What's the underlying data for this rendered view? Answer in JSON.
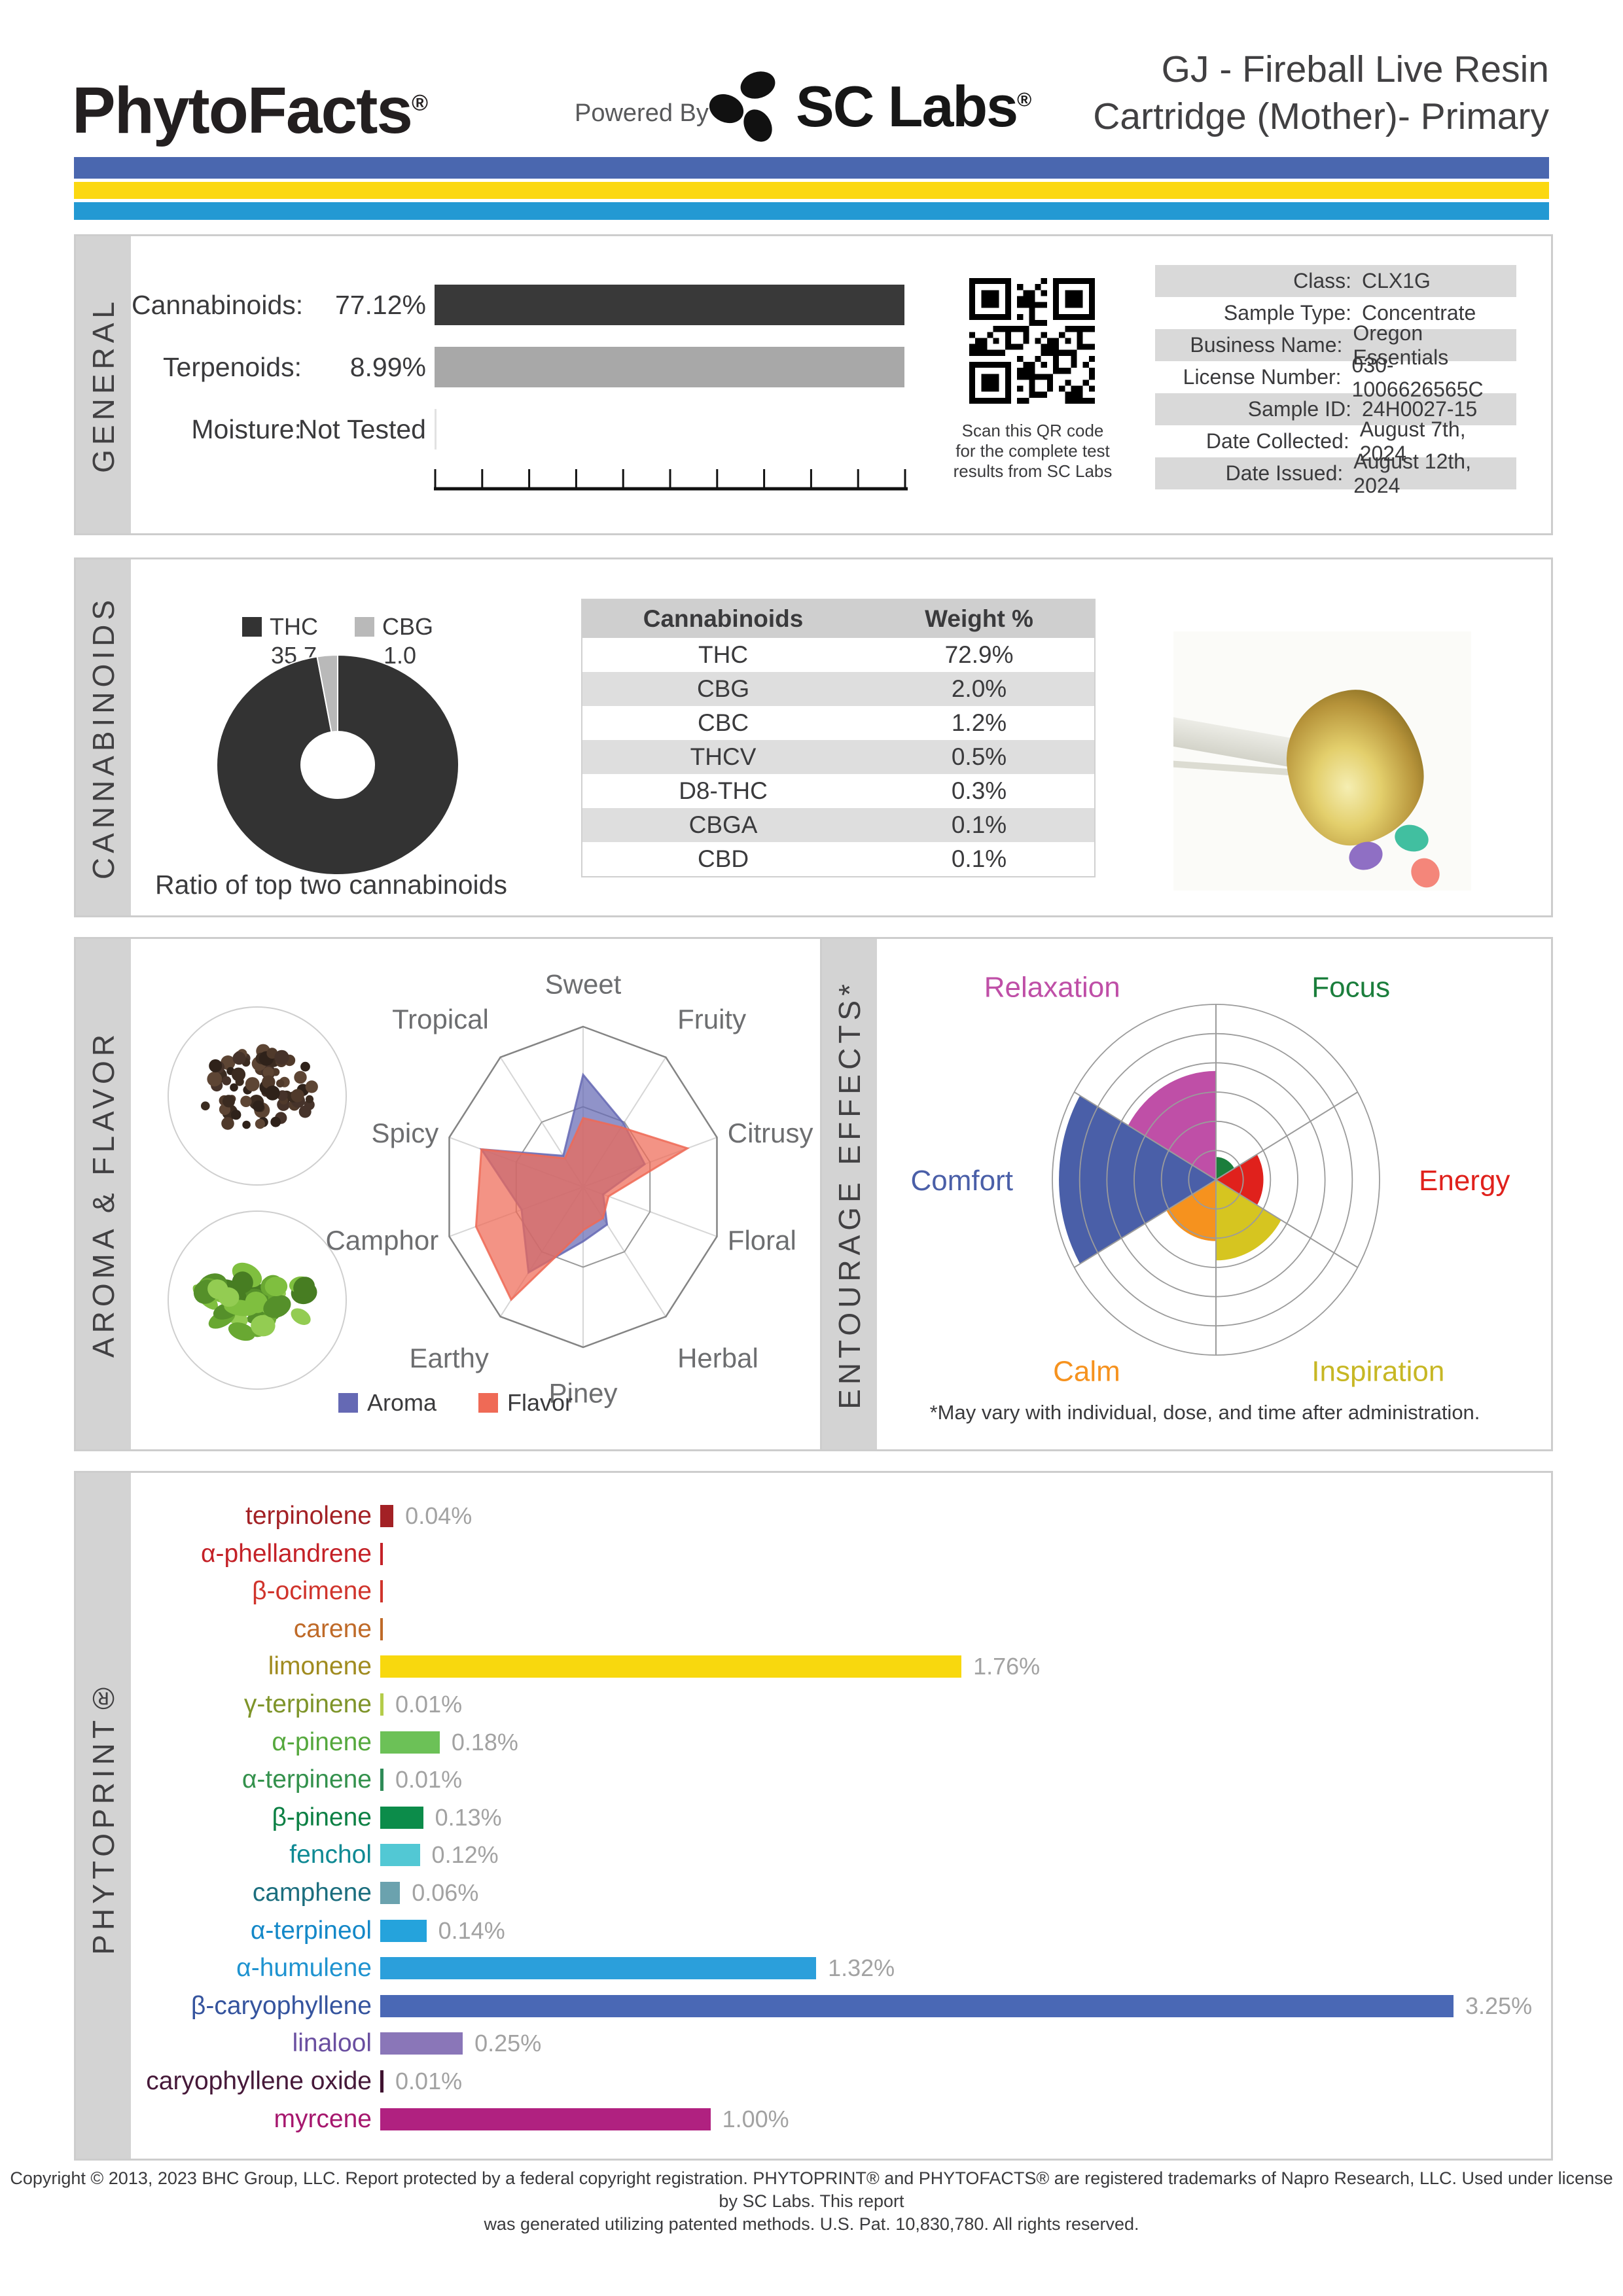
{
  "header": {
    "brand": "PhytoFacts",
    "brand_reg": "®",
    "powered_by": "Powered By",
    "lab_name": "SC Labs",
    "lab_reg": "®",
    "title_line1": "GJ - Fireball Live Resin",
    "title_line2": "Cartridge (Mother)- Primary",
    "stripe_colors": {
      "blue": "#4a67af",
      "yellow": "#fbd811",
      "cyan": "#2399d3"
    }
  },
  "general": {
    "section_label": "GENERAL",
    "rows": [
      {
        "label": "Cannabinoids:",
        "value": "77.12%",
        "bar": true,
        "bar_color": "#393939"
      },
      {
        "label": "Terpenoids:",
        "value": "8.99%",
        "bar": true,
        "bar_color": "#a8a8a8"
      },
      {
        "label": "Moisture:",
        "value": "Not Tested",
        "bar": false,
        "bar_color": ""
      }
    ],
    "qr_caption_lines": [
      "Scan this QR code",
      "for the complete test",
      "results from SC Labs"
    ],
    "info_table": [
      {
        "label": "Class:",
        "value": "CLX1G"
      },
      {
        "label": "Sample Type:",
        "value": "Concentrate"
      },
      {
        "label": "Business Name:",
        "value": "Oregon Essentials"
      },
      {
        "label": "License Number:",
        "value": "030-1006626565C"
      },
      {
        "label": "Sample ID:",
        "value": "24H0027-15"
      },
      {
        "label": "Date Collected:",
        "value": "August 7th, 2024"
      },
      {
        "label": "Date Issued:",
        "value": "August 12th, 2024"
      }
    ]
  },
  "cannabinoids": {
    "section_label": "CANNABINOIDS",
    "caption": "Ratio of top two cannabinoids",
    "chart_data": {
      "type": "pie",
      "labels": [
        "THC",
        "CBG"
      ],
      "values": [
        35.7,
        1.0
      ],
      "colors": [
        "#333333",
        "#b9b9b9"
      ],
      "title": "Ratio of top two cannabinoids"
    },
    "table": {
      "headers": [
        "Cannabinoids",
        "Weight %"
      ],
      "rows": [
        [
          "THC",
          "72.9%"
        ],
        [
          "CBG",
          "2.0%"
        ],
        [
          "CBC",
          "1.2%"
        ],
        [
          "THCV",
          "0.5%"
        ],
        [
          "D8-THC",
          "0.3%"
        ],
        [
          "CBGA",
          "0.1%"
        ],
        [
          "CBD",
          "0.1%"
        ]
      ]
    }
  },
  "aroma_flavor": {
    "section_label": "AROMA & FLAVOR",
    "chart_data": {
      "type": "radar",
      "axes": [
        "Sweet",
        "Fruity",
        "Citrusy",
        "Floral",
        "Herbal",
        "Piney",
        "Earthy",
        "Camphor",
        "Spicy",
        "Tropical"
      ],
      "scale_max": 10,
      "grid_rings": [
        0.5,
        1.0
      ],
      "series": [
        {
          "name": "Aroma",
          "color": "#6569b4",
          "values": [
            7.0,
            4.9,
            4.6,
            1.5,
            2.9,
            3.4,
            6.6,
            4.6,
            7.6,
            2.4
          ]
        },
        {
          "name": "Flavor",
          "color": "#ef6a56",
          "values": [
            4.3,
            4.6,
            7.8,
            1.9,
            2.4,
            2.7,
            8.7,
            8.0,
            7.6,
            2.2
          ]
        }
      ],
      "legend_position": "bottom"
    }
  },
  "entourage": {
    "section_label": "ENTOURAGE EFFECTS*",
    "note": "*May vary with individual, dose, and time after administration.",
    "chart_data": {
      "type": "polar-sector",
      "rings": 6,
      "scale_max": 1,
      "sectors": [
        {
          "name": "Focus",
          "value": 0.13,
          "color": "#1b7e3c",
          "label_color": "#1b7e3c"
        },
        {
          "name": "Energy",
          "value": 0.29,
          "color": "#e0211c",
          "label_color": "#e0211c"
        },
        {
          "name": "Inspiration",
          "value": 0.46,
          "color": "#d6c520",
          "label_color": "#c7b724"
        },
        {
          "name": "Calm",
          "value": 0.35,
          "color": "#f6921e",
          "label_color": "#f6921e"
        },
        {
          "name": "Comfort",
          "value": 0.96,
          "color": "#4a5fa8",
          "label_color": "#4a5fa8"
        },
        {
          "name": "Relaxation",
          "value": 0.62,
          "color": "#bf4fa7",
          "label_color": "#bf4fa7"
        }
      ]
    }
  },
  "phytoprint": {
    "section_label": "PHYTOPRINT®",
    "chart_data": {
      "type": "bar",
      "unit": "%",
      "scale_max": 3.25,
      "bars": [
        {
          "name": "terpinolene",
          "value": 0.04,
          "value_label": "0.04%",
          "label_color": "#a32125",
          "bar_color": "#a32125"
        },
        {
          "name": "α-phellandrene",
          "value": 0.005,
          "value_label": "",
          "label_color": "#c42127",
          "bar_color": "#c42127"
        },
        {
          "name": "β-ocimene",
          "value": 0.005,
          "value_label": "",
          "label_color": "#d0342c",
          "bar_color": "#d0342c"
        },
        {
          "name": "carene",
          "value": 0.005,
          "value_label": "",
          "label_color": "#bf6a28",
          "bar_color": "#bf6a28"
        },
        {
          "name": "limonene",
          "value": 1.76,
          "value_label": "1.76%",
          "label_color": "#a08b1f",
          "bar_color": "#f8d80e"
        },
        {
          "name": "γ-terpinene",
          "value": 0.01,
          "value_label": "0.01%",
          "label_color": "#7e9429",
          "bar_color": "#b4cc4a"
        },
        {
          "name": "α-pinene",
          "value": 0.18,
          "value_label": "0.18%",
          "label_color": "#55a83d",
          "bar_color": "#6cc157"
        },
        {
          "name": "α-terpinene",
          "value": 0.01,
          "value_label": "0.01%",
          "label_color": "#33914c",
          "bar_color": "#2e8b57"
        },
        {
          "name": "β-pinene",
          "value": 0.13,
          "value_label": "0.13%",
          "label_color": "#0c8044",
          "bar_color": "#0c8c4a"
        },
        {
          "name": "fenchol",
          "value": 0.12,
          "value_label": "0.12%",
          "label_color": "#0f8a94",
          "bar_color": "#52c8d4"
        },
        {
          "name": "camphene",
          "value": 0.06,
          "value_label": "0.06%",
          "label_color": "#1b6e7e",
          "bar_color": "#6ba2ae"
        },
        {
          "name": "α-terpineol",
          "value": 0.14,
          "value_label": "0.14%",
          "label_color": "#1488c8",
          "bar_color": "#25a3dc"
        },
        {
          "name": "α-humulene",
          "value": 1.32,
          "value_label": "1.32%",
          "label_color": "#1f93d0",
          "bar_color": "#2b9fdb"
        },
        {
          "name": "β-caryophyllene",
          "value": 3.25,
          "value_label": "3.25%",
          "label_color": "#35549e",
          "bar_color": "#4a68b5"
        },
        {
          "name": "linalool",
          "value": 0.25,
          "value_label": "0.25%",
          "label_color": "#6a4fa0",
          "bar_color": "#8a76b8"
        },
        {
          "name": "caryophyllene oxide",
          "value": 0.01,
          "value_label": "0.01%",
          "label_color": "#461939",
          "bar_color": "#3f1230"
        },
        {
          "name": "myrcene",
          "value": 1.0,
          "value_label": "1.00%",
          "label_color": "#a6176e",
          "bar_color": "#b02180"
        }
      ]
    }
  },
  "footer": {
    "line1": "Copyright © 2013, 2023 BHC Group, LLC. Report protected by a federal copyright registration. PHYTOPRINT® and PHYTOFACTS® are registered trademarks of Napro Research, LLC. Used under license by SC Labs. This report",
    "line2": "was generated utilizing patented methods. U.S. Pat. 10,830,780. All rights reserved."
  }
}
